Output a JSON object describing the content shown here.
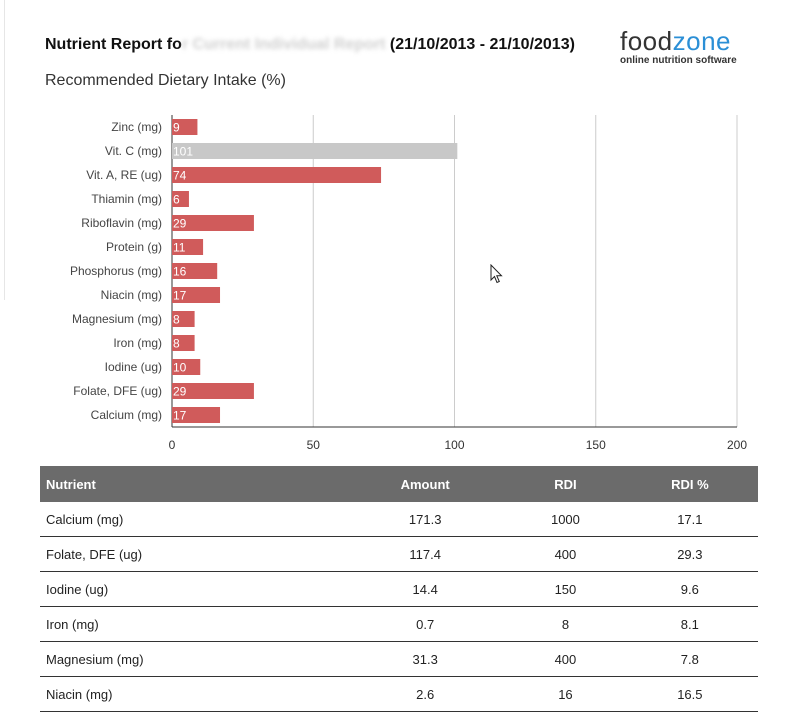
{
  "header": {
    "title_prefix": "Nutrient Report fo",
    "title_redacted": "r Current Individual Report",
    "title_suffix": " (21/10/2013 - 21/10/2013)",
    "subtitle": "Recommended Dietary Intake (%)"
  },
  "logo": {
    "brand_part1": "food",
    "brand_part2": "zone",
    "tagline": "online nutrition software"
  },
  "colors": {
    "bar": "#d05b5b",
    "bar_over": "#c8c8c8",
    "grid": "#cccccc",
    "header_bg": "#6b6b6b"
  },
  "chart_data": {
    "type": "bar",
    "orientation": "horizontal",
    "title": "Recommended Dietary Intake (%)",
    "categories": [
      "Zinc (mg)",
      "Vit. C (mg)",
      "Vit. A, RE (ug)",
      "Thiamin (mg)",
      "Riboflavin (mg)",
      "Protein (g)",
      "Phosphorus (mg)",
      "Niacin (mg)",
      "Magnesium (mg)",
      "Iron (mg)",
      "Iodine (ug)",
      "Folate, DFE (ug)",
      "Calcium (mg)"
    ],
    "values": [
      9,
      101,
      74,
      6,
      29,
      11,
      16,
      17,
      8,
      8,
      10,
      29,
      17
    ],
    "data_labels": [
      "9",
      "101",
      "74",
      "6",
      "29",
      "11",
      "16",
      "17",
      "8",
      "8",
      "10",
      "29",
      "17"
    ],
    "xlim": [
      0,
      200
    ],
    "xticks": [
      "0",
      "50",
      "100",
      "150",
      "200"
    ],
    "tick_values": [
      0,
      50,
      100,
      150,
      200
    ],
    "grid": true,
    "legend": "none"
  },
  "table": {
    "headers": [
      "Nutrient",
      "Amount",
      "RDI",
      "RDI %"
    ],
    "rows": [
      [
        "Calcium (mg)",
        "171.3",
        "1000",
        "17.1"
      ],
      [
        "Folate, DFE (ug)",
        "117.4",
        "400",
        "29.3"
      ],
      [
        "Iodine (ug)",
        "14.4",
        "150",
        "9.6"
      ],
      [
        "Iron (mg)",
        "0.7",
        "8",
        "8.1"
      ],
      [
        "Magnesium (mg)",
        "31.3",
        "400",
        "7.8"
      ],
      [
        "Niacin (mg)",
        "2.6",
        "16",
        "16.5"
      ]
    ]
  }
}
